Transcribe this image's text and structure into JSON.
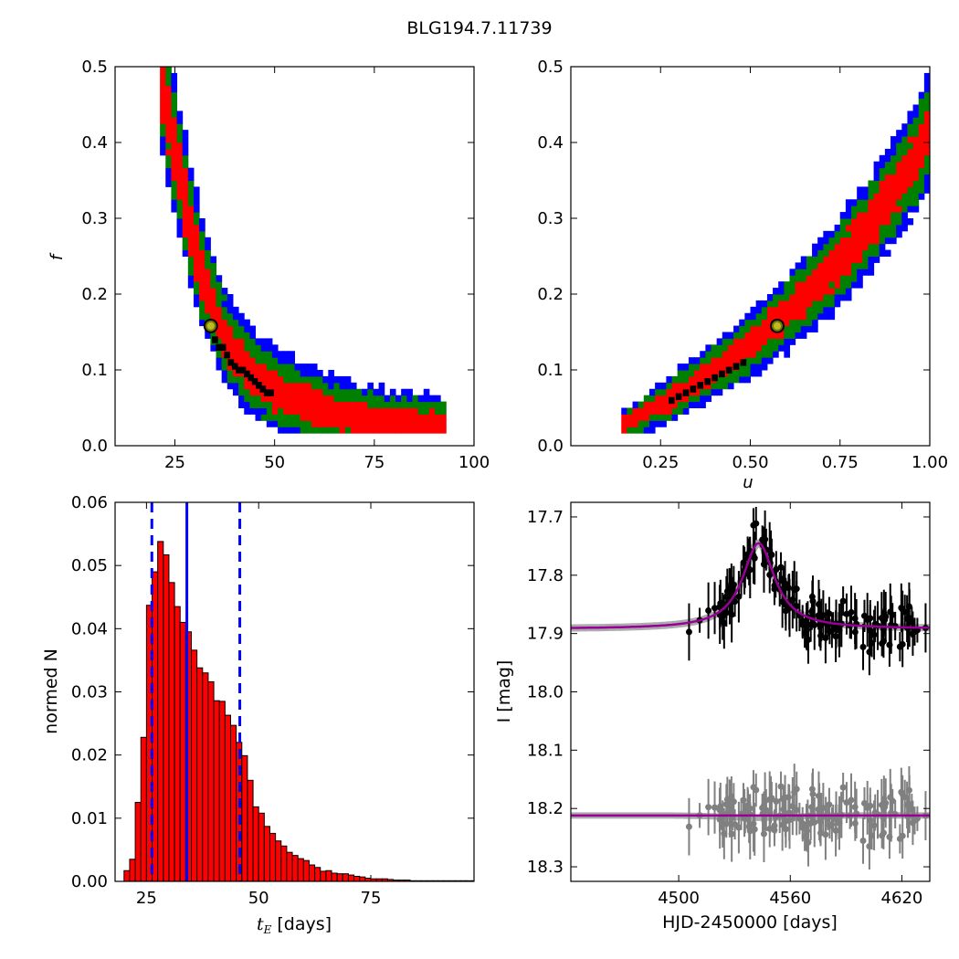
{
  "figure": {
    "title": "BLG194.7.11739"
  },
  "chart_data": [
    {
      "type": "heatmap",
      "panel": "top-left",
      "xlabel": "",
      "ylabel": "f_s",
      "xlim": [
        10,
        100
      ],
      "ylim": [
        0.0,
        0.5
      ],
      "xticks": [
        25,
        50,
        75,
        100
      ],
      "yticks": [
        0.0,
        0.1,
        0.2,
        0.3,
        0.4,
        0.5
      ],
      "colors": {
        "outer": "#0000ff",
        "middle": "#008000",
        "inner": "#ff0000",
        "peak": "#000000"
      },
      "best_fit": {
        "x": 34,
        "y": 0.158
      },
      "ridge": [
        [
          21.5,
          0.49
        ],
        [
          23,
          0.44
        ],
        [
          24.5,
          0.4
        ],
        [
          26,
          0.36
        ],
        [
          27.5,
          0.32
        ],
        [
          29,
          0.28
        ],
        [
          30.5,
          0.25
        ],
        [
          32,
          0.22
        ],
        [
          34,
          0.19
        ],
        [
          36,
          0.16
        ],
        [
          38,
          0.135
        ],
        [
          41,
          0.115
        ],
        [
          44,
          0.097
        ],
        [
          48,
          0.08
        ],
        [
          53,
          0.066
        ],
        [
          58,
          0.055
        ],
        [
          64,
          0.045
        ],
        [
          70,
          0.037
        ],
        [
          77,
          0.031
        ],
        [
          85,
          0.027
        ],
        [
          93,
          0.025
        ]
      ],
      "peak_cells": [
        [
          35,
          0.14
        ],
        [
          36,
          0.13
        ],
        [
          37,
          0.13
        ],
        [
          38,
          0.12
        ],
        [
          39,
          0.11
        ],
        [
          40,
          0.105
        ],
        [
          41,
          0.1
        ],
        [
          42,
          0.1
        ],
        [
          43,
          0.095
        ],
        [
          44,
          0.09
        ],
        [
          45,
          0.085
        ],
        [
          46,
          0.08
        ],
        [
          47,
          0.075
        ],
        [
          48,
          0.07
        ],
        [
          49,
          0.07
        ]
      ]
    },
    {
      "type": "heatmap",
      "panel": "top-right",
      "xlabel": "u_0",
      "ylabel": "",
      "xlim": [
        0.0,
        1.0
      ],
      "ylim": [
        0.0,
        0.5
      ],
      "xticks": [
        0.25,
        0.5,
        0.75,
        1.0
      ],
      "xtick_labels": [
        "0.25",
        "0.50",
        "0.75",
        "1.00"
      ],
      "yticks": [
        0.0,
        0.1,
        0.2,
        0.3,
        0.4,
        0.5
      ],
      "colors": {
        "outer": "#0000ff",
        "middle": "#008000",
        "inner": "#ff0000",
        "peak": "#000000"
      },
      "best_fit": {
        "x": 0.575,
        "y": 0.158
      },
      "ridge": [
        [
          0.14,
          0.025
        ],
        [
          0.2,
          0.04
        ],
        [
          0.26,
          0.057
        ],
        [
          0.32,
          0.075
        ],
        [
          0.38,
          0.093
        ],
        [
          0.44,
          0.113
        ],
        [
          0.5,
          0.135
        ],
        [
          0.56,
          0.158
        ],
        [
          0.62,
          0.183
        ],
        [
          0.68,
          0.21
        ],
        [
          0.74,
          0.24
        ],
        [
          0.8,
          0.272
        ],
        [
          0.86,
          0.31
        ],
        [
          0.92,
          0.35
        ],
        [
          0.97,
          0.39
        ],
        [
          1.0,
          0.42
        ]
      ],
      "peak_cells": [
        [
          0.28,
          0.06
        ],
        [
          0.3,
          0.065
        ],
        [
          0.32,
          0.07
        ],
        [
          0.34,
          0.075
        ],
        [
          0.36,
          0.08
        ],
        [
          0.38,
          0.085
        ],
        [
          0.4,
          0.09
        ],
        [
          0.42,
          0.095
        ],
        [
          0.44,
          0.1
        ],
        [
          0.46,
          0.105
        ],
        [
          0.48,
          0.11
        ]
      ]
    },
    {
      "type": "bar",
      "panel": "bottom-left",
      "xlabel": "t_E  [days]",
      "ylabel": "normed N",
      "xlim": [
        18,
        98
      ],
      "ylim": [
        0.0,
        0.06
      ],
      "xticks": [
        25,
        50,
        75
      ],
      "yticks": [
        0.0,
        0.01,
        0.02,
        0.03,
        0.04,
        0.05,
        0.06
      ],
      "ytick_labels": [
        "0.00",
        "0.01",
        "0.02",
        "0.03",
        "0.04",
        "0.05",
        "0.06"
      ],
      "bin_start": 20.0,
      "bin_width": 1.25,
      "values": [
        0.0017,
        0.0035,
        0.0125,
        0.0228,
        0.0437,
        0.049,
        0.0538,
        0.0517,
        0.0473,
        0.0435,
        0.041,
        0.0395,
        0.0366,
        0.0338,
        0.033,
        0.0316,
        0.0286,
        0.0285,
        0.0263,
        0.0247,
        0.022,
        0.0199,
        0.016,
        0.0118,
        0.0108,
        0.0087,
        0.0076,
        0.0064,
        0.0056,
        0.0046,
        0.0041,
        0.0036,
        0.0033,
        0.0026,
        0.0022,
        0.0016,
        0.0017,
        0.0013,
        0.0012,
        0.0012,
        0.001,
        0.0008,
        0.0007,
        0.0005,
        0.0004,
        0.0004,
        0.0004,
        0.0003,
        0.0002,
        0.0002,
        0.0002,
        0.0001,
        0.0001,
        0.0001,
        0.0001,
        0.0001,
        0.0001,
        0.0001,
        0.0001,
        0.0001,
        0.0001,
        0.0001,
        0.0001,
        0.0001
      ],
      "bar_color": "#ff0000",
      "median_line": 34,
      "dashed_lines": [
        26.2,
        45.8
      ],
      "line_color": "#0000ff"
    },
    {
      "type": "scatter",
      "panel": "bottom-right",
      "xlabel": "HJD-2450000 [days]",
      "ylabel": "I [mag]",
      "xlim": [
        4442,
        4635
      ],
      "ylim": [
        18.325,
        17.675
      ],
      "y_inverted": true,
      "xticks": [
        4500,
        4560,
        4620
      ],
      "yticks": [
        17.7,
        17.8,
        17.9,
        18.0,
        18.1,
        18.2,
        18.3
      ],
      "model": {
        "t0": 4543,
        "peak": 17.745,
        "base": 17.892,
        "width": 10,
        "color": "#990099"
      },
      "residual_base": 18.212,
      "data_color": "#000000",
      "residual_color": "#808080"
    }
  ]
}
